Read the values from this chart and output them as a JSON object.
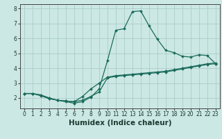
{
  "xlabel": "Humidex (Indice chaleur)",
  "bg_color": "#cce8e4",
  "grid_color": "#aaccca",
  "line_color": "#1a6b5a",
  "xlim": [
    -0.5,
    23.5
  ],
  "ylim": [
    1.3,
    8.3
  ],
  "yticks": [
    2,
    3,
    4,
    5,
    6,
    7,
    8
  ],
  "xticks": [
    0,
    1,
    2,
    3,
    4,
    5,
    6,
    7,
    8,
    9,
    10,
    11,
    12,
    13,
    14,
    15,
    16,
    17,
    18,
    19,
    20,
    21,
    22,
    23
  ],
  "line1_x": [
    0,
    1,
    2,
    3,
    4,
    5,
    6,
    7,
    8,
    9,
    10,
    11,
    12,
    13,
    14,
    15,
    16,
    17,
    18,
    19,
    20,
    21,
    22,
    23
  ],
  "line1_y": [
    2.3,
    2.3,
    2.2,
    2.0,
    1.85,
    1.8,
    1.75,
    1.85,
    2.1,
    2.4,
    3.35,
    3.45,
    3.5,
    3.55,
    3.6,
    3.65,
    3.7,
    3.75,
    3.85,
    3.95,
    4.05,
    4.15,
    4.25,
    4.3
  ],
  "line2_x": [
    0,
    1,
    2,
    3,
    4,
    5,
    6,
    7,
    8,
    9,
    10,
    11,
    12,
    13,
    14,
    15,
    16,
    17,
    18,
    19,
    20,
    21,
    22,
    23
  ],
  "line2_y": [
    2.3,
    2.3,
    2.15,
    1.95,
    1.85,
    1.75,
    1.65,
    1.75,
    2.05,
    2.6,
    4.5,
    6.55,
    6.65,
    7.8,
    7.85,
    6.85,
    5.95,
    5.2,
    5.05,
    4.8,
    4.75,
    4.9,
    4.85,
    4.3
  ],
  "line3_x": [
    0,
    1,
    2,
    3,
    4,
    5,
    6,
    7,
    8,
    9,
    10,
    11,
    12,
    13,
    14,
    15,
    16,
    17,
    18,
    19,
    20,
    21,
    22,
    23
  ],
  "line3_y": [
    2.3,
    2.3,
    2.2,
    2.0,
    1.85,
    1.8,
    1.75,
    2.1,
    2.6,
    3.0,
    3.4,
    3.5,
    3.55,
    3.6,
    3.65,
    3.7,
    3.75,
    3.8,
    3.9,
    4.0,
    4.1,
    4.2,
    4.3,
    4.35
  ],
  "tick_fontsize": 5.5,
  "xlabel_fontsize": 7.5
}
